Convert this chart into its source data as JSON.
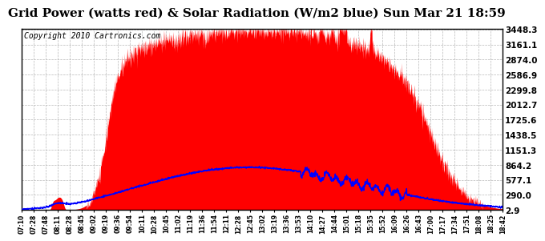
{
  "title": "Grid Power (watts red) & Solar Radiation (W/m2 blue) Sun Mar 21 18:59",
  "copyright": "Copyright 2010 Cartronics.com",
  "background_color": "#ffffff",
  "plot_bg_color": "#ffffff",
  "grid_color": "#b0b0b0",
  "y_ticks": [
    2.9,
    290.0,
    577.1,
    864.2,
    1151.3,
    1438.5,
    1725.6,
    2012.7,
    2299.8,
    2586.9,
    2874.0,
    3161.1,
    3448.3
  ],
  "y_min": 2.9,
  "y_max": 3448.3,
  "x_labels": [
    "07:10",
    "07:28",
    "07:48",
    "08:11",
    "08:28",
    "08:45",
    "09:02",
    "09:19",
    "09:36",
    "09:54",
    "10:11",
    "10:28",
    "10:45",
    "11:02",
    "11:19",
    "11:36",
    "11:54",
    "12:11",
    "12:28",
    "12:45",
    "13:02",
    "13:19",
    "13:36",
    "13:53",
    "14:10",
    "14:27",
    "14:44",
    "15:01",
    "15:18",
    "15:35",
    "15:52",
    "16:09",
    "16:26",
    "16:43",
    "17:00",
    "17:17",
    "17:34",
    "17:51",
    "18:08",
    "18:25",
    "18:42"
  ],
  "red_color": "#ff0000",
  "blue_color": "#0000ff",
  "title_fontsize": 11,
  "copyright_fontsize": 7
}
